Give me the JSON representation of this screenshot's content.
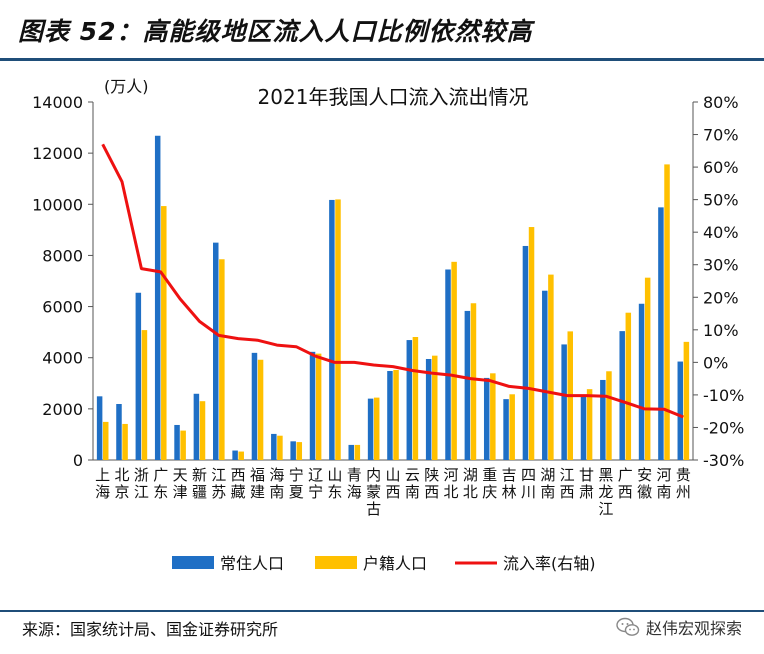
{
  "figure": {
    "title": "图表 52：高能级地区流入人口比例依然较高",
    "source": "来源：国家统计局、国金证券研究所",
    "brand": "赵伟宏观探索"
  },
  "chart_data": {
    "type": "bar",
    "title": "2021年我国人口流入流出情况",
    "y_unit_label": "(万人)",
    "categories": [
      "上海",
      "北京",
      "浙江",
      "广东",
      "天津",
      "新疆",
      "江苏",
      "西藏",
      "福建",
      "海南",
      "宁夏",
      "辽宁",
      "山东",
      "青海",
      "内蒙古",
      "山西",
      "云南",
      "陕西",
      "河北",
      "湖北",
      "重庆",
      "吉林",
      "四川",
      "湖南",
      "江西",
      "甘肃",
      "黑龙江",
      "广西",
      "安徽",
      "河南",
      "贵州"
    ],
    "ylim": [
      0,
      14000
    ],
    "y_ticks": [
      0,
      2000,
      4000,
      6000,
      8000,
      10000,
      12000,
      14000
    ],
    "y2lim": [
      -30,
      80
    ],
    "y2_ticks": [
      "-30%",
      "-20%",
      "-10%",
      "0%",
      "10%",
      "20%",
      "30%",
      "40%",
      "50%",
      "60%",
      "70%",
      "80%"
    ],
    "grid": false,
    "legend_position": "bottom",
    "series": [
      {
        "name": "常住人口",
        "color": "#1f6fc5",
        "axis": "left",
        "values": [
          2490,
          2190,
          6540,
          12680,
          1370,
          2590,
          8500,
          370,
          4190,
          1020,
          730,
          4230,
          10170,
          590,
          2400,
          3480,
          4690,
          3950,
          7450,
          5830,
          3210,
          2380,
          8370,
          6620,
          4520,
          2490,
          3130,
          5040,
          6110,
          9880,
          3850
        ]
      },
      {
        "name": "户籍人口",
        "color": "#ffc000",
        "axis": "left",
        "values": [
          1490,
          1410,
          5080,
          9930,
          1150,
          2300,
          7850,
          330,
          3920,
          950,
          700,
          4160,
          10190,
          590,
          2440,
          3520,
          4810,
          4080,
          7750,
          6130,
          3390,
          2570,
          9110,
          7250,
          5030,
          2770,
          3470,
          5760,
          7130,
          11560,
          4620
        ]
      },
      {
        "name": "流入率(右轴)",
        "color": "#ee1111",
        "axis": "right",
        "type": "line",
        "values": [
          67,
          55.5,
          28.8,
          27.8,
          19.5,
          12.6,
          8.3,
          7.3,
          6.8,
          5.3,
          4.8,
          1.9,
          0.0,
          0.0,
          -0.8,
          -1.3,
          -2.5,
          -3.3,
          -3.9,
          -5.0,
          -5.6,
          -7.4,
          -8.0,
          -9.1,
          -10.2,
          -10.2,
          -10.4,
          -12.3,
          -14.3,
          -14.4,
          -16.8
        ]
      }
    ]
  }
}
